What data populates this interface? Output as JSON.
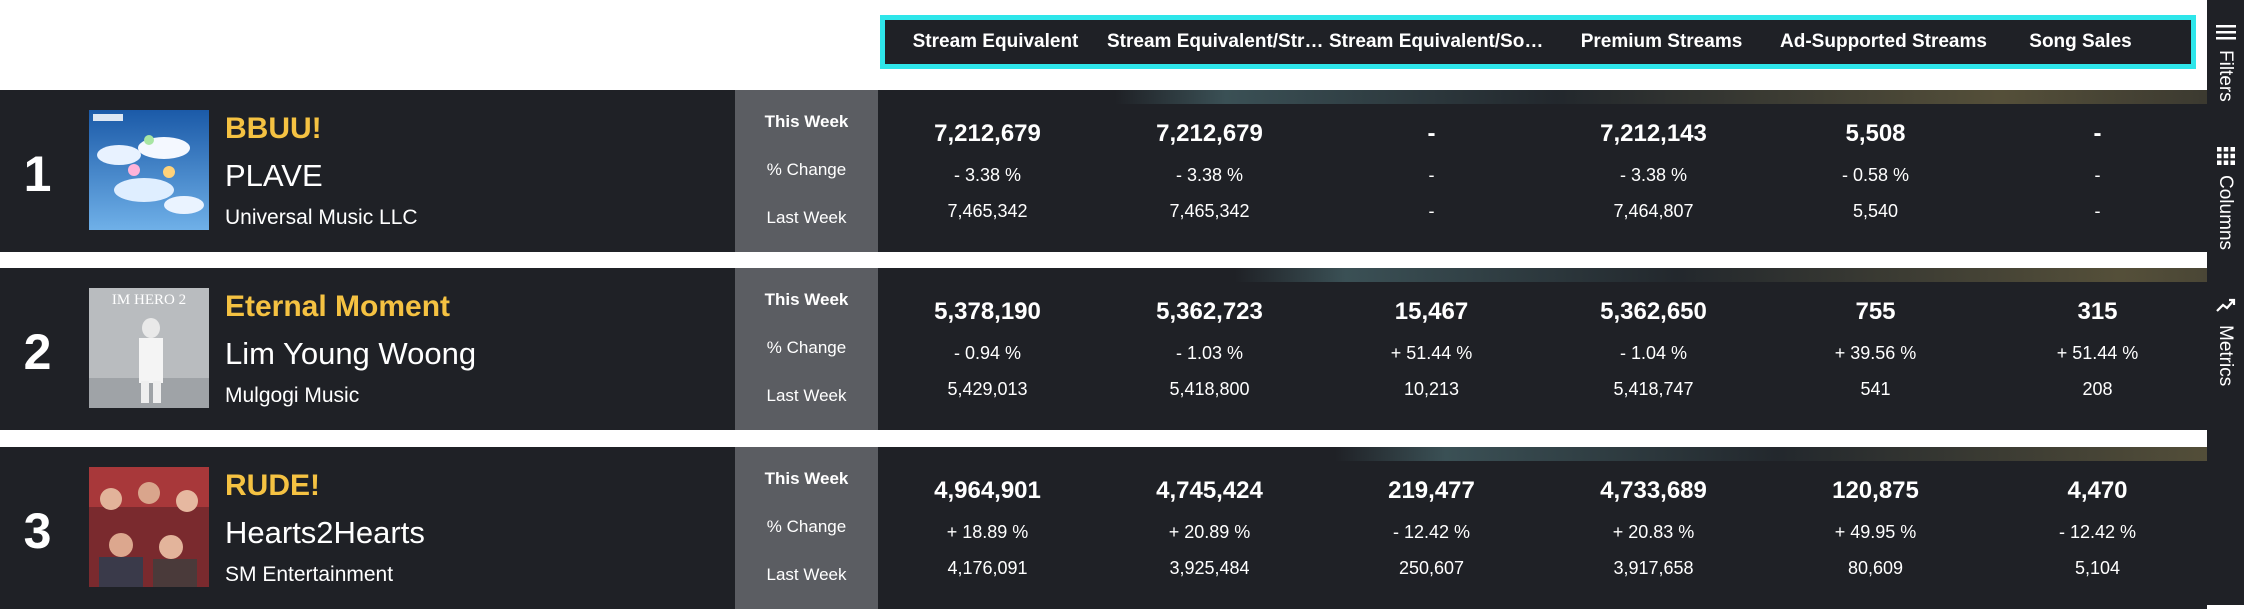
{
  "header": {
    "columns": [
      "Stream Equivalent",
      "Stream Equivalent/Stre...",
      "Stream Equivalent/Son...",
      "Premium Streams",
      "Ad-Supported Streams",
      "Song Sales"
    ]
  },
  "row_labels": {
    "this_week": "This Week",
    "pct_change": "% Change",
    "last_week": "Last Week"
  },
  "rows": [
    {
      "rank": "1",
      "title": "BBUU!",
      "artist": "PLAVE",
      "label": "Universal Music LLC",
      "this_week": [
        "7,212,679",
        "7,212,679",
        "-",
        "7,212,143",
        "5,508",
        "-"
      ],
      "pct_change": [
        "- 3.38 %",
        "- 3.38 %",
        "-",
        "- 3.38 %",
        "- 0.58 %",
        "-"
      ],
      "last_week": [
        "7,465,342",
        "7,465,342",
        "-",
        "7,464,807",
        "5,540",
        "-"
      ]
    },
    {
      "rank": "2",
      "title": "Eternal Moment",
      "artist": "Lim Young Woong",
      "label": "Mulgogi Music",
      "cover_text": "IM HERO 2",
      "this_week": [
        "5,378,190",
        "5,362,723",
        "15,467",
        "5,362,650",
        "755",
        "315"
      ],
      "pct_change": [
        "- 0.94 %",
        "- 1.03 %",
        "+ 51.44 %",
        "- 1.04 %",
        "+ 39.56 %",
        "+ 51.44 %"
      ],
      "last_week": [
        "5,429,013",
        "5,418,800",
        "10,213",
        "5,418,747",
        "541",
        "208"
      ]
    },
    {
      "rank": "3",
      "title": "RUDE!",
      "artist": "Hearts2Hearts",
      "label": "SM Entertainment",
      "this_week": [
        "4,964,901",
        "4,745,424",
        "219,477",
        "4,733,689",
        "120,875",
        "4,470"
      ],
      "pct_change": [
        "+ 18.89 %",
        "+ 20.89 %",
        "- 12.42 %",
        "+ 20.83 %",
        "+ 49.95 %",
        "- 12.42 %"
      ],
      "last_week": [
        "4,176,091",
        "3,925,484",
        "250,607",
        "3,917,658",
        "80,609",
        "5,104"
      ]
    }
  ],
  "side": {
    "filters": "Filters",
    "columns": "Columns",
    "metrics": "Metrics"
  },
  "colors": {
    "accent": "#2ee6ea",
    "title": "#f5c242",
    "row_bg": "#1f2126",
    "label_bg": "#5b5d62"
  }
}
